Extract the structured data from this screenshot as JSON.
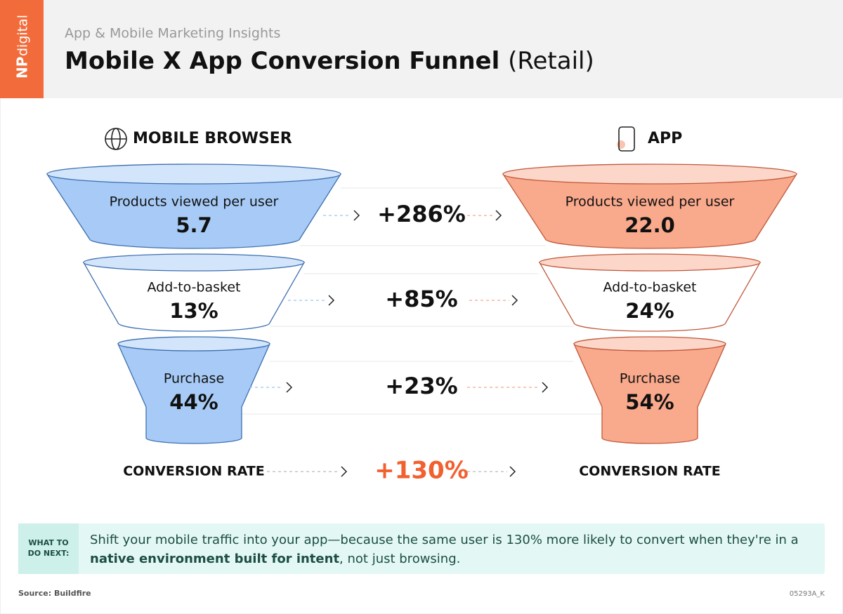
{
  "header": {
    "logo": {
      "np": "NP",
      "digital": "digital"
    },
    "subtitle": "App & Mobile Marketing Insights",
    "title": "Mobile X App Conversion Funnel",
    "title_suffix": "(Retail)"
  },
  "columns": {
    "left": "MOBILE BROWSER",
    "right": "APP"
  },
  "stages": [
    {
      "label": "Products viewed per user",
      "browser": "5.7",
      "app": "22.0",
      "lift": "+286%"
    },
    {
      "label": "Add-to-basket",
      "browser": "13%",
      "app": "24%",
      "lift": "+85%"
    },
    {
      "label": "Purchase",
      "browser": "44%",
      "app": "54%",
      "lift": "+23%"
    }
  ],
  "conversion": {
    "label": "CONVERSION RATE",
    "lift": "+130%"
  },
  "callout": {
    "tag": [
      "WHAT TO",
      "DO NEXT:"
    ],
    "line1": "Shift your mobile traffic into your app—because the same user is 130% more likely to convert when they're in a",
    "bold": "native environment built for intent",
    "after": ", not just browsing."
  },
  "footer": {
    "source": "Source: Buildfire",
    "code": "05293A_K"
  }
}
